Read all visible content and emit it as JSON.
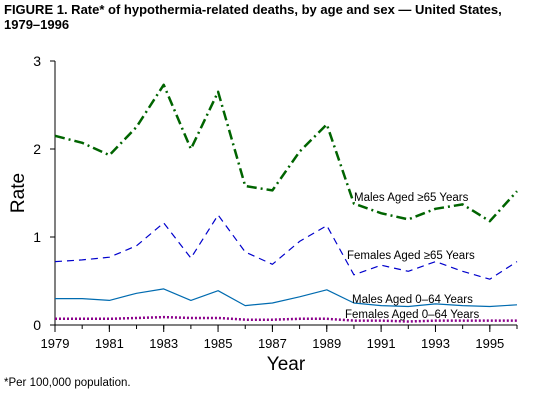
{
  "title": {
    "line1": "FIGURE 1. Rate* of hypothermia-related deaths, by age and sex — United States,",
    "line2": "1979–1996"
  },
  "footnote": "*Per 100,000 population.",
  "chart_data": {
    "type": "line",
    "title": "",
    "xlabel": "Year",
    "ylabel": "Rate",
    "xlim": [
      1979,
      1996
    ],
    "ylim": [
      0,
      3
    ],
    "x_ticks": [
      1979,
      1981,
      1983,
      1985,
      1987,
      1989,
      1991,
      1993,
      1995
    ],
    "y_ticks": [
      0,
      1,
      2,
      3
    ],
    "grid": false,
    "legend": "direct labels",
    "x": [
      1979,
      1980,
      1981,
      1982,
      1983,
      1984,
      1985,
      1986,
      1987,
      1988,
      1989,
      1990,
      1991,
      1992,
      1993,
      1994,
      1995,
      1996
    ],
    "series": [
      {
        "name": "Males Aged ≥65 Years",
        "color": "#006400",
        "style": "dashdot",
        "values": [
          2.15,
          2.07,
          1.93,
          2.25,
          2.73,
          2.0,
          2.65,
          1.58,
          1.53,
          1.97,
          2.28,
          1.38,
          1.27,
          1.2,
          1.32,
          1.37,
          1.18,
          1.52
        ]
      },
      {
        "name": "Females Aged ≥65 Years",
        "color": "#0000cc",
        "style": "dashed",
        "values": [
          0.72,
          0.74,
          0.77,
          0.9,
          1.16,
          0.76,
          1.25,
          0.83,
          0.69,
          0.95,
          1.13,
          0.57,
          0.68,
          0.61,
          0.72,
          0.61,
          0.52,
          0.72
        ]
      },
      {
        "name": "Males Aged 0–64 Years",
        "color": "#006bb0",
        "style": "solid",
        "values": [
          0.3,
          0.3,
          0.28,
          0.36,
          0.41,
          0.28,
          0.39,
          0.22,
          0.25,
          0.32,
          0.4,
          0.25,
          0.22,
          0.21,
          0.24,
          0.22,
          0.21,
          0.23
        ]
      },
      {
        "name": "Females Aged 0–64 Years",
        "color": "#8b008b",
        "style": "dotted",
        "values": [
          0.07,
          0.07,
          0.07,
          0.08,
          0.09,
          0.08,
          0.08,
          0.06,
          0.06,
          0.07,
          0.07,
          0.05,
          0.05,
          0.04,
          0.05,
          0.05,
          0.05,
          0.05
        ]
      }
    ],
    "annotations": [
      {
        "text": "Males Aged ≥65 Years",
        "series": 0
      },
      {
        "text": "Females Aged ≥65 Years",
        "series": 1
      },
      {
        "text": "Males Aged 0–64 Years",
        "series": 2
      },
      {
        "text": "Females Aged 0–64 Years",
        "series": 3
      }
    ]
  }
}
